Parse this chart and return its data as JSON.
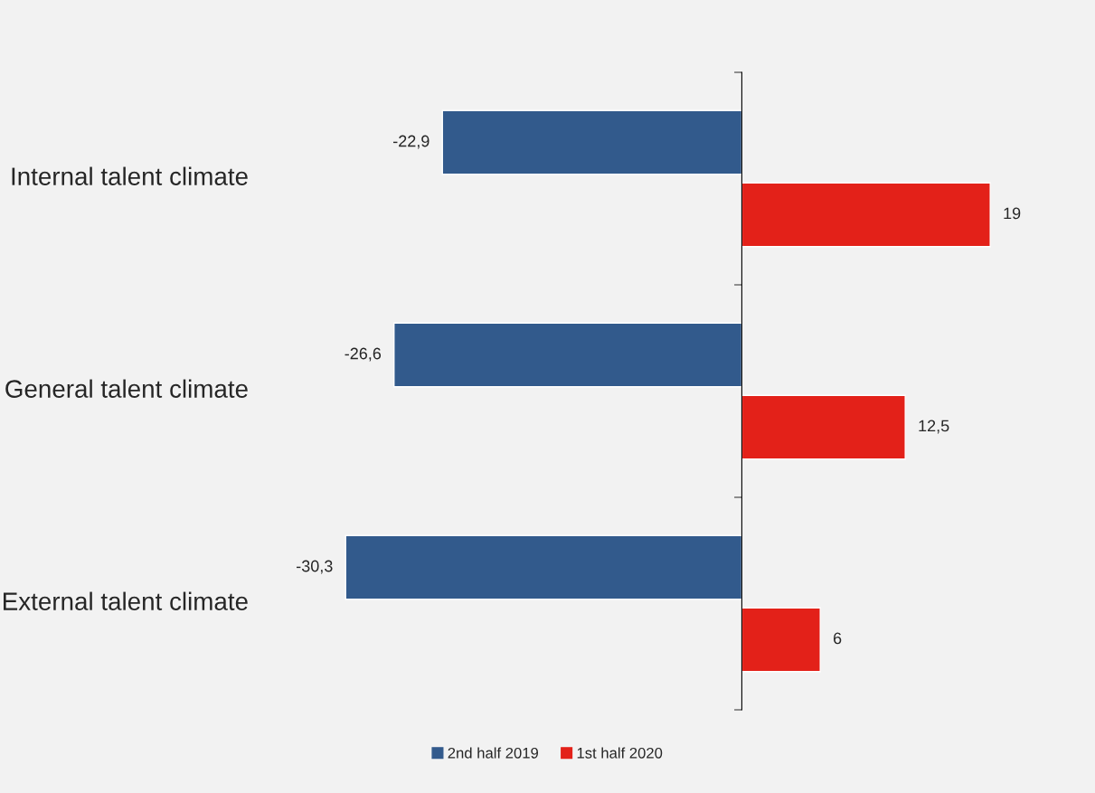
{
  "chart_data": {
    "type": "bar",
    "orientation": "horizontal",
    "categories": [
      "Internal talent climate",
      "General talent climate",
      "External talent climate"
    ],
    "series": [
      {
        "name": "2nd half 2019",
        "color": "#325a8c",
        "values": [
          -22.9,
          -26.6,
          -30.3
        ],
        "value_labels": [
          "-22,9",
          "-26,6",
          "-30,3"
        ]
      },
      {
        "name": "1st half 2020",
        "color": "#e32119",
        "values": [
          19,
          12.5,
          6
        ],
        "value_labels": [
          "19",
          "12,5",
          "6"
        ]
      }
    ],
    "legend": "bottom"
  }
}
